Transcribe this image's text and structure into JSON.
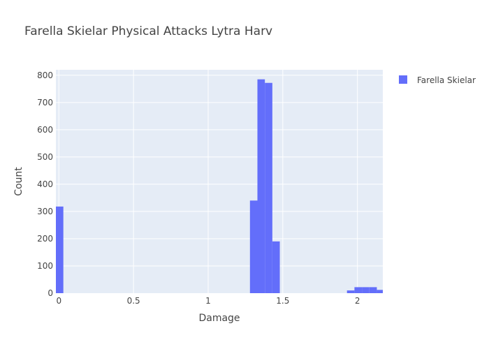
{
  "chart_data": {
    "type": "bar",
    "title": "Farella Skielar Physical Attacks Lytra Harv",
    "xlabel": "Damage",
    "ylabel": "Count",
    "xlim": [
      -0.02,
      2.17
    ],
    "ylim": [
      0,
      820
    ],
    "xticks": [
      0,
      0.5,
      1,
      1.5,
      2
    ],
    "xtick_labels": [
      "0",
      "0.5",
      "1",
      "1.5",
      "2"
    ],
    "yticks": [
      0,
      100,
      200,
      300,
      400,
      500,
      600,
      700,
      800
    ],
    "ytick_labels": [
      "0",
      "100",
      "200",
      "300",
      "400",
      "500",
      "600",
      "700",
      "800"
    ],
    "grid": true,
    "legend_position": "top-right",
    "series": [
      {
        "name": "Farella Skielar",
        "color": "#636efa",
        "bins": [
          {
            "x0": -0.02,
            "x1": 0.03,
            "count": 318
          },
          {
            "x0": 1.28,
            "x1": 1.33,
            "count": 340
          },
          {
            "x0": 1.33,
            "x1": 1.38,
            "count": 785
          },
          {
            "x0": 1.38,
            "x1": 1.43,
            "count": 772
          },
          {
            "x0": 1.43,
            "x1": 1.48,
            "count": 190
          },
          {
            "x0": 1.93,
            "x1": 1.98,
            "count": 10
          },
          {
            "x0": 1.98,
            "x1": 2.03,
            "count": 22
          },
          {
            "x0": 2.03,
            "x1": 2.08,
            "count": 22
          },
          {
            "x0": 2.08,
            "x1": 2.13,
            "count": 22
          },
          {
            "x0": 2.13,
            "x1": 2.18,
            "count": 12
          }
        ]
      }
    ]
  }
}
